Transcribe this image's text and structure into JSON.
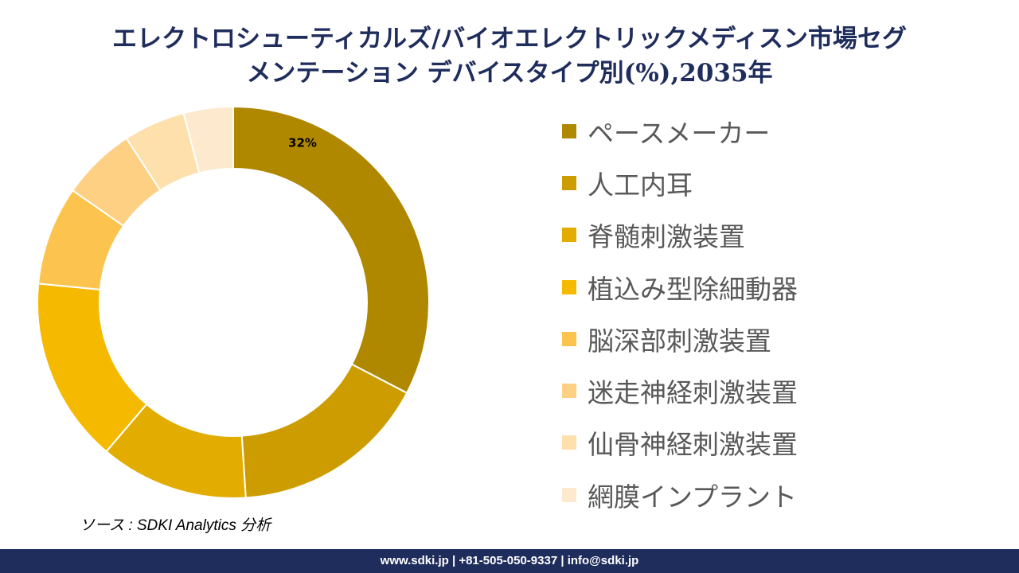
{
  "title_line1": "エレクトロシューティカルズ/バイオエレクトリックメディスン市場セグ",
  "title_line2": "メンテーション デバイスタイプ別(%),2035年",
  "chart_data": {
    "type": "pie",
    "style": "donut",
    "title": "エレクトロシューティカルズ/バイオエレクトリックメディスン市場セグメンテーション デバイスタイプ別(%),2035年",
    "categories": [
      "ペースメーカー",
      "人工内耳",
      "脊髄刺激装置",
      "植込み型除細動器",
      "脳深部刺激装置",
      "迷走神経刺激装置",
      "仙骨神経刺激装置",
      "網膜インプラント"
    ],
    "values": [
      32,
      16,
      12,
      15,
      8,
      6,
      5,
      4
    ],
    "colors": [
      "#b08800",
      "#cc9c00",
      "#e2ad00",
      "#f5ba00",
      "#fcc44f",
      "#fdd083",
      "#fde0ac",
      "#fde9cd"
    ],
    "data_labels": [
      "32%",
      "",
      "",
      "",
      "",
      "",
      "",
      ""
    ],
    "legend_position": "right"
  },
  "source": "ソース : SDKI Analytics 分析",
  "footer": "www.sdki.jp | +81-505-050-9337 | info@sdki.jp"
}
